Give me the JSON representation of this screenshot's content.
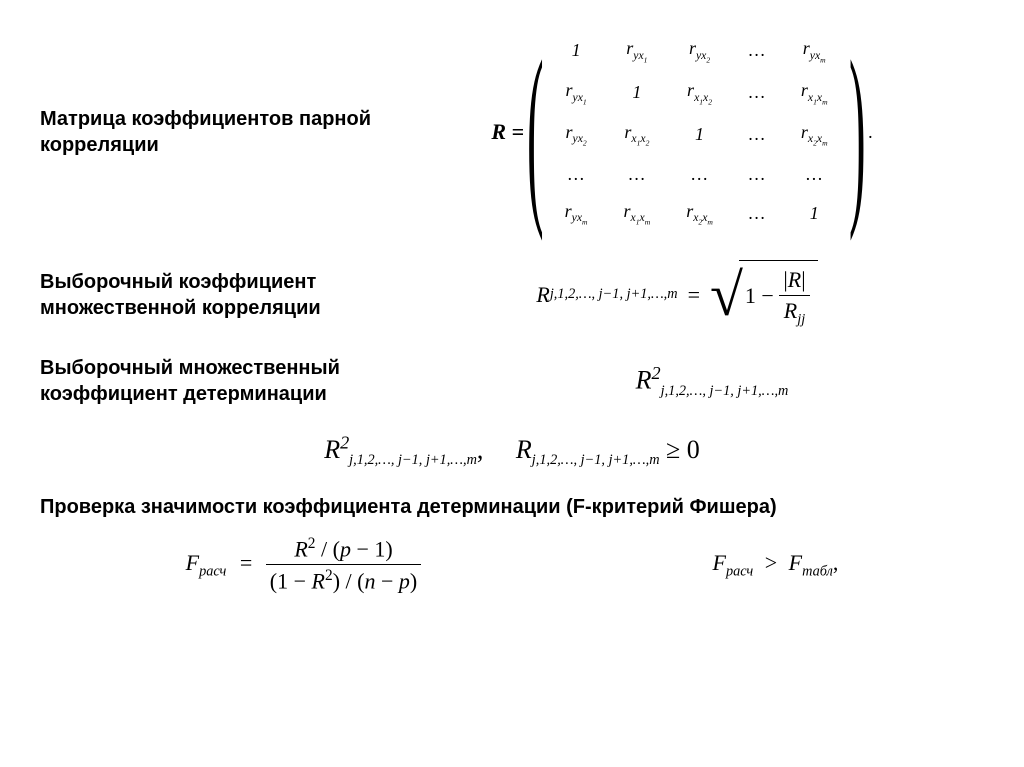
{
  "section1": {
    "label": "Матрица коэффициентов парной корреляции",
    "lhs": "R =",
    "matrix": [
      [
        "1",
        "r<sub class='sub'>yx<sub class='sub'>1</sub></sub>",
        "r<sub class='sub'>yx<sub class='sub'>2</sub></sub>",
        "…",
        "r<sub class='sub'>yx<sub class='sub'>m</sub></sub>"
      ],
      [
        "r<sub class='sub'>yx<sub class='sub'>1</sub></sub>",
        "1",
        "r<sub class='sub'>x<sub class='sub'>1</sub>x<sub class='sub'>2</sub></sub>",
        "…",
        "r<sub class='sub'>x<sub class='sub'>1</sub>x<sub class='sub'>m</sub></sub>"
      ],
      [
        "r<sub class='sub'>yx<sub class='sub'>2</sub></sub>",
        "r<sub class='sub'>x<sub class='sub'>1</sub>x<sub class='sub'>2</sub></sub>",
        "1",
        "…",
        "r<sub class='sub'>x<sub class='sub'>2</sub>x<sub class='sub'>m</sub></sub>"
      ],
      [
        "…",
        "…",
        "…",
        "…",
        "…"
      ],
      [
        "r<sub class='sub'>yx<sub class='sub'>m</sub></sub>",
        "r<sub class='sub'>x<sub class='sub'>1</sub>x<sub class='sub'>m</sub></sub>",
        "r<sub class='sub'>x<sub class='sub'>2</sub>x<sub class='sub'>m</sub></sub>",
        "…",
        "1"
      ]
    ]
  },
  "section2": {
    "label": "Выборочный коэффициент множественной корреляции",
    "lhs_sub": "j,1,2,…, j−1, j+1,…,m",
    "frac_num": "|R|",
    "frac_den_sub": "jj"
  },
  "section3": {
    "label": "Выборочный множественный коэффициент детерминации",
    "r2_sub": "j,1,2,…, j−1, j+1,…,m"
  },
  "section3b": {
    "left_sub": "j,1,2,…, j−1, j+1,…,m",
    "right_sub": "j,1,2,…, j−1, j+1,…,m",
    "ineq": "≥ 0"
  },
  "section4": {
    "label": "Проверка значимости коэффициента детерминации (F-критерий Фишера)",
    "lhs": "F",
    "lhs_sub": "расч",
    "num": "R² / (p − 1)",
    "den": "(1 − R²) / (n − p)",
    "rhs1": "F",
    "rhs1_sub": "расч",
    "gt": ">",
    "rhs2": "F",
    "rhs2_sub": "табл"
  }
}
